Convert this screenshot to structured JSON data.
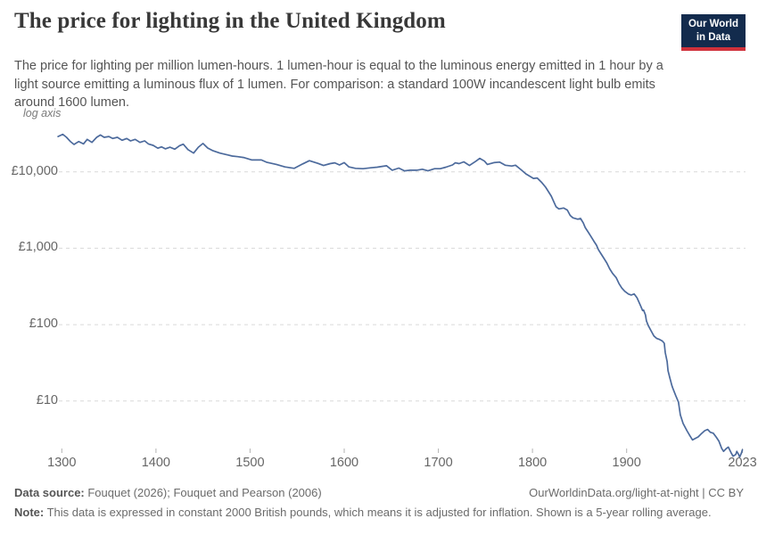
{
  "header": {
    "title": "The price for lighting in the United Kingdom",
    "subtitle": "The price for lighting per million lumen-hours. 1 lumen-hour is equal to the luminous energy emitted in 1 hour by a light source emitting a luminous flux of 1 lumen. For comparison: a standard 100W incandescent light bulb emits around 1600 lumen.",
    "logo": {
      "line1": "Our World",
      "line2": "in Data"
    }
  },
  "chart_data": {
    "type": "line",
    "title": "The price for lighting in the United Kingdom",
    "axis_note": "log axis",
    "y_scale": "log",
    "grid": "dashed horizontal gridlines",
    "legend_position": "none",
    "line_color": "#4c6a9c",
    "x_range": [
      1290,
      2026
    ],
    "y_ticks": [
      {
        "value": 10000,
        "label": "£10,000"
      },
      {
        "value": 1000,
        "label": "£1,000"
      },
      {
        "value": 100,
        "label": "£100"
      },
      {
        "value": 10,
        "label": "£10"
      }
    ],
    "x_ticks": [
      {
        "value": 1300,
        "label": "1300"
      },
      {
        "value": 1400,
        "label": "1400"
      },
      {
        "value": 1500,
        "label": "1500"
      },
      {
        "value": 1600,
        "label": "1600"
      },
      {
        "value": 1700,
        "label": "1700"
      },
      {
        "value": 1800,
        "label": "1800"
      },
      {
        "value": 1900,
        "label": "1900"
      },
      {
        "value": 2023,
        "label": "2023"
      }
    ],
    "series": [
      {
        "name": "United Kingdom",
        "unit": "constant 2000 British pounds per million lumen-hours",
        "points": [
          [
            1296,
            29000
          ],
          [
            1301,
            31000
          ],
          [
            1305,
            28300
          ],
          [
            1309,
            25000
          ],
          [
            1313,
            22800
          ],
          [
            1318,
            24900
          ],
          [
            1323,
            23200
          ],
          [
            1327,
            26600
          ],
          [
            1332,
            24300
          ],
          [
            1337,
            28300
          ],
          [
            1341,
            30300
          ],
          [
            1345,
            28300
          ],
          [
            1350,
            29000
          ],
          [
            1354,
            27300
          ],
          [
            1359,
            28300
          ],
          [
            1364,
            25900
          ],
          [
            1369,
            27300
          ],
          [
            1373,
            25400
          ],
          [
            1378,
            26600
          ],
          [
            1383,
            24300
          ],
          [
            1388,
            25400
          ],
          [
            1392,
            23200
          ],
          [
            1397,
            22200
          ],
          [
            1402,
            20400
          ],
          [
            1406,
            21200
          ],
          [
            1410,
            20000
          ],
          [
            1415,
            21000
          ],
          [
            1420,
            19800
          ],
          [
            1425,
            22000
          ],
          [
            1429,
            23000
          ],
          [
            1434,
            19500
          ],
          [
            1440,
            17600
          ],
          [
            1445,
            21000
          ],
          [
            1450,
            23500
          ],
          [
            1455,
            20500
          ],
          [
            1460,
            19000
          ],
          [
            1468,
            17600
          ],
          [
            1475,
            16800
          ],
          [
            1481,
            16100
          ],
          [
            1487,
            15800
          ],
          [
            1493,
            15400
          ],
          [
            1502,
            14300
          ],
          [
            1512,
            14300
          ],
          [
            1518,
            13300
          ],
          [
            1528,
            12500
          ],
          [
            1537,
            11600
          ],
          [
            1547,
            11100
          ],
          [
            1556,
            12700
          ],
          [
            1563,
            14000
          ],
          [
            1572,
            12900
          ],
          [
            1578,
            12100
          ],
          [
            1585,
            12800
          ],
          [
            1590,
            13100
          ],
          [
            1595,
            12300
          ],
          [
            1600,
            13200
          ],
          [
            1605,
            11600
          ],
          [
            1612,
            11100
          ],
          [
            1620,
            11000
          ],
          [
            1628,
            11300
          ],
          [
            1635,
            11500
          ],
          [
            1641,
            11800
          ],
          [
            1645,
            12000
          ],
          [
            1651,
            10500
          ],
          [
            1658,
            11200
          ],
          [
            1664,
            10300
          ],
          [
            1670,
            10500
          ],
          [
            1677,
            10500
          ],
          [
            1683,
            10800
          ],
          [
            1689,
            10300
          ],
          [
            1696,
            11000
          ],
          [
            1702,
            11000
          ],
          [
            1708,
            11500
          ],
          [
            1715,
            12300
          ],
          [
            1718,
            13100
          ],
          [
            1722,
            12800
          ],
          [
            1727,
            13500
          ],
          [
            1733,
            12100
          ],
          [
            1740,
            13800
          ],
          [
            1744,
            15000
          ],
          [
            1749,
            13800
          ],
          [
            1752,
            12500
          ],
          [
            1759,
            13200
          ],
          [
            1765,
            13400
          ],
          [
            1771,
            12200
          ],
          [
            1778,
            11900
          ],
          [
            1782,
            12200
          ],
          [
            1788,
            10600
          ],
          [
            1793,
            9400
          ],
          [
            1801,
            8200
          ],
          [
            1805,
            8300
          ],
          [
            1810,
            7200
          ],
          [
            1814,
            6280
          ],
          [
            1820,
            4800
          ],
          [
            1825,
            3500
          ],
          [
            1828,
            3270
          ],
          [
            1833,
            3360
          ],
          [
            1837,
            3160
          ],
          [
            1840,
            2690
          ],
          [
            1843,
            2500
          ],
          [
            1848,
            2400
          ],
          [
            1851,
            2450
          ],
          [
            1854,
            2140
          ],
          [
            1856,
            1870
          ],
          [
            1859,
            1640
          ],
          [
            1862,
            1430
          ],
          [
            1865,
            1250
          ],
          [
            1868,
            1095
          ],
          [
            1870,
            960
          ],
          [
            1873,
            838
          ],
          [
            1876,
            733
          ],
          [
            1879,
            641
          ],
          [
            1882,
            537
          ],
          [
            1885,
            469
          ],
          [
            1889,
            410
          ],
          [
            1892,
            343
          ],
          [
            1895,
            300
          ],
          [
            1898,
            273
          ],
          [
            1902,
            251
          ],
          [
            1905,
            244
          ],
          [
            1908,
            253
          ],
          [
            1911,
            225
          ],
          [
            1915,
            175
          ],
          [
            1917,
            153
          ],
          [
            1918,
            155
          ],
          [
            1920,
            134
          ],
          [
            1921,
            112
          ],
          [
            1923,
            97
          ],
          [
            1926,
            83
          ],
          [
            1929,
            71
          ],
          [
            1932,
            66
          ],
          [
            1935,
            64
          ],
          [
            1938,
            61
          ],
          [
            1940,
            57
          ],
          [
            1941,
            43
          ],
          [
            1943,
            33
          ],
          [
            1944,
            25
          ],
          [
            1946,
            20
          ],
          [
            1948,
            16
          ],
          [
            1949,
            14.8
          ],
          [
            1952,
            11.9
          ],
          [
            1955,
            9.7
          ],
          [
            1957,
            6.6
          ],
          [
            1960,
            5.1
          ],
          [
            1964,
            4.1
          ],
          [
            1967,
            3.55
          ],
          [
            1970,
            3.1
          ],
          [
            1973,
            3.25
          ],
          [
            1976,
            3.4
          ],
          [
            1979,
            3.7
          ],
          [
            1983,
            4.1
          ],
          [
            1986,
            4.25
          ],
          [
            1989,
            3.9
          ],
          [
            1992,
            3.8
          ],
          [
            1995,
            3.4
          ],
          [
            1998,
            3.0
          ],
          [
            2001,
            2.4
          ],
          [
            2003,
            2.2
          ],
          [
            2006,
            2.4
          ],
          [
            2008,
            2.5
          ],
          [
            2011,
            2.1
          ],
          [
            2013,
            1.9
          ],
          [
            2016,
            2.0
          ],
          [
            2017,
            2.2
          ],
          [
            2019,
            2.0
          ],
          [
            2020,
            1.85
          ],
          [
            2022,
            2.1
          ],
          [
            2023,
            2.3
          ]
        ]
      }
    ]
  },
  "footer": {
    "source_label": "Data source:",
    "source_text": " Fouquet (2026); Fouquet and Pearson (2006)",
    "credit": "OurWorldinData.org/light-at-night | CC BY",
    "note_label": "Note:",
    "note_text": " This data is expressed in constant 2000 British pounds, which means it is adjusted for inflation. Shown is a 5-year rolling average."
  }
}
